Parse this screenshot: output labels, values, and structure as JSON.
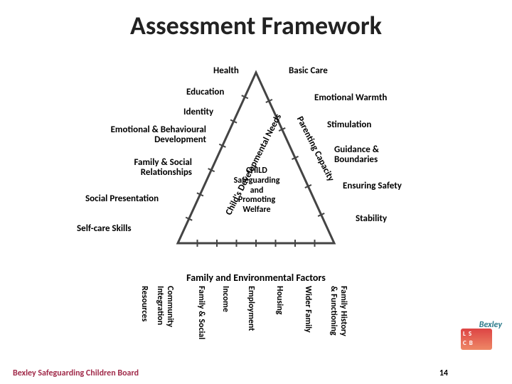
{
  "title": "Assessment Framework",
  "triangle": {
    "stroke": "#444444",
    "stroke_width": 3,
    "fill": "none",
    "apex": [
      360,
      8
    ],
    "baseL": [
      250,
      248
    ],
    "baseR": [
      470,
      248
    ],
    "center_text": [
      "CHILD",
      "Safeguarding",
      "and",
      "Promoting",
      "Welfare"
    ]
  },
  "left_side": {
    "axis_label": "Child's Developmental Needs",
    "items": [
      "Health",
      "Education",
      "Identity",
      "Emotional & Behavioural\nDevelopment",
      "Family & Social\nRelationships",
      "Social Presentation",
      "Self-care Skills"
    ]
  },
  "right_side": {
    "axis_label": "Parenting Capacity",
    "items": [
      "Basic Care",
      "Emotional Warmth",
      "Stimulation",
      "Guidance &\nBoundaries",
      "Ensuring Safety",
      "Stability"
    ]
  },
  "base_side": {
    "title": "Family and Environmental Factors",
    "items": [
      "Resources",
      "Community\nIntegration",
      "Family & Social",
      "Income",
      "Employment",
      "Housing",
      "Wider Family",
      "Family History\n& Functioning"
    ]
  },
  "logo": {
    "line1": "L S",
    "line2": "C B",
    "brand": "Bexley"
  },
  "footer": "Bexley Safeguarding Children Board",
  "page_number": "14",
  "colors": {
    "title": "#222222",
    "footer": "#a12b4a",
    "brand": "#2a7a8a"
  },
  "tick": {
    "stroke": "#444444",
    "width": 2
  }
}
